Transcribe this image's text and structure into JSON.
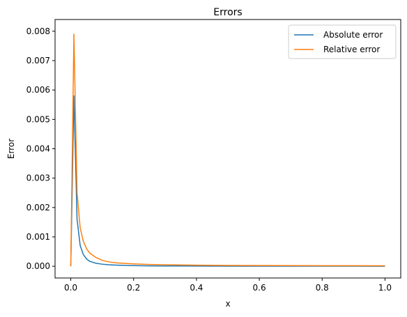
{
  "chart_data": {
    "type": "line",
    "title": "Errors",
    "xlabel": "x",
    "ylabel": "Error",
    "xlim": [
      -0.05,
      1.05
    ],
    "ylim": [
      -0.0004,
      0.0084
    ],
    "xticks": [
      0.0,
      0.2,
      0.4,
      0.6,
      0.8,
      1.0
    ],
    "xtick_labels": [
      "0.0",
      "0.2",
      "0.4",
      "0.6",
      "0.8",
      "1.0"
    ],
    "yticks": [
      0.0,
      0.001,
      0.002,
      0.003,
      0.004,
      0.005,
      0.006,
      0.007,
      0.008
    ],
    "ytick_labels": [
      "0.000",
      "0.001",
      "0.002",
      "0.003",
      "0.004",
      "0.005",
      "0.006",
      "0.007",
      "0.008"
    ],
    "grid": false,
    "legend_position": "top-right",
    "series": [
      {
        "name": "Absolute error",
        "color": "#1f77b4",
        "x": [
          0.0,
          0.01,
          0.02,
          0.03,
          0.04,
          0.05,
          0.06,
          0.08,
          0.1,
          0.12,
          0.15,
          0.2,
          0.25,
          0.3,
          0.4,
          0.5,
          0.6,
          0.7,
          0.8,
          0.9,
          1.0
        ],
        "y": [
          0.0,
          0.0058,
          0.0016,
          0.0007,
          0.0004,
          0.00025,
          0.00017,
          0.0001,
          7e-05,
          5e-05,
          3.5e-05,
          2e-05,
          1.3e-05,
          1e-05,
          6e-06,
          4e-06,
          3e-06,
          2.5e-06,
          2e-06,
          1.7e-06,
          1.5e-06
        ]
      },
      {
        "name": "Relative error",
        "color": "#ff7f0e",
        "x": [
          0.0,
          0.01,
          0.02,
          0.03,
          0.04,
          0.05,
          0.06,
          0.08,
          0.1,
          0.12,
          0.15,
          0.2,
          0.25,
          0.3,
          0.4,
          0.5,
          0.6,
          0.7,
          0.8,
          0.9,
          1.0
        ],
        "y": [
          0.0,
          0.0079,
          0.0025,
          0.0013,
          0.00085,
          0.0006,
          0.00045,
          0.0003,
          0.0002,
          0.00015,
          0.00011,
          8e-05,
          6e-05,
          5e-05,
          3.5e-05,
          2.8e-05,
          2.4e-05,
          2.1e-05,
          1.9e-05,
          1.7e-05,
          1.6e-05
        ]
      }
    ]
  }
}
